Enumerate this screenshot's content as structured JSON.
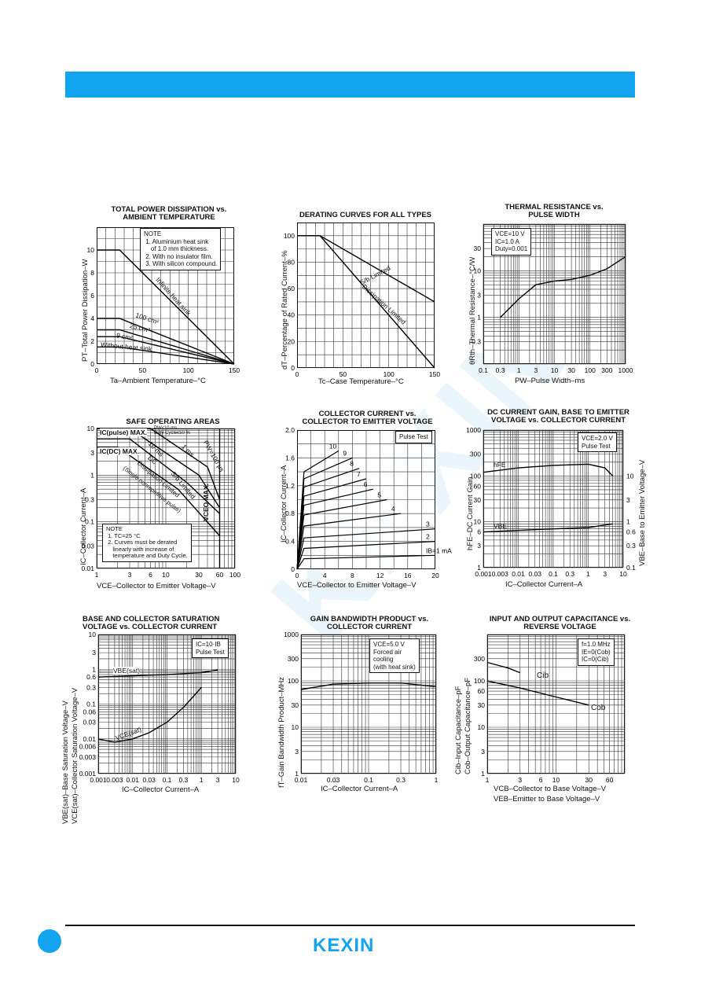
{
  "brand": {
    "logo_text": "KEXIN",
    "header_color": "#12a4ee"
  },
  "panels": {
    "p1": {
      "title": "TOTAL POWER DISSIPATION vs.\nAMBIENT TEMPERATURE",
      "xlabel": "Ta–Ambient Temperature–°C",
      "ylabel": "PT–Total Power Dissipation–W",
      "xticks": [
        "0",
        "50",
        "100",
        "150"
      ],
      "yticks": [
        "0",
        "2",
        "4",
        "6",
        "8",
        "10"
      ],
      "note": "NOTE\n 1. Aluminium heat sink\n    of 1.0 mm thickness.\n 2. With no insulator film.\n 3. With silicon compound.",
      "labels": [
        "Infinite heat sink",
        "100 cm²",
        "25 cm²",
        "9 cm²",
        "Without heat sink"
      ]
    },
    "p2": {
      "title": "DERATING CURVES FOR ALL TYPES",
      "xlabel": "Tc–Case Temperature–°C",
      "ylabel": "dT–Percentage of Rated Current–%",
      "xticks": [
        "0",
        "50",
        "100",
        "150"
      ],
      "yticks": [
        "0",
        "20",
        "40",
        "60",
        "80",
        "100"
      ],
      "labels": [
        "S/b Limited",
        "Dissipation Limited"
      ]
    },
    "p3": {
      "title": "THERMAL RESISTANCE vs.\nPULSE WIDTH",
      "xlabel": "PW–Pulse Width–ms",
      "ylabel": "θRth–Thermal Resistance–°C/W",
      "xticks": [
        "0.1",
        "0.3",
        "1",
        "3",
        "10",
        "30",
        "100",
        "300",
        "1000"
      ],
      "yticks": [
        "0.3",
        "1",
        "3",
        "10",
        "30"
      ],
      "note": "VCE=10 V\nIC=1.0 A\nDuty=0.001"
    },
    "p4": {
      "title": "SAFE OPERATING AREAS",
      "xlabel": "VCE–Collector to Emitter Voltage–V",
      "ylabel": "IC–Collector Current–A",
      "xticks": [
        "1",
        "3",
        "6",
        "10",
        "30",
        "60",
        "100"
      ],
      "yticks": [
        "0.01",
        "0.03",
        "0.1",
        "0.3",
        "1",
        "3",
        "10"
      ],
      "note": "NOTE\n 1. TC=25 °C\n 2. Curves must be derated\n    linearly with increase of\n    temperature and Duty Cycle.",
      "labels": [
        "IC(pulse) MAX.",
        "IC(DC) MAX.",
        "PW≤10 ms",
        "Duty Cycle≤50 %",
        "1 ms",
        "10 ms",
        "PW=100 μs",
        "DC",
        "Dissipation Limited",
        "S/b Limited",
        "(Single nonrepetitive pulse)",
        "VCEO MAX."
      ]
    },
    "p5": {
      "title": "COLLECTOR CURRENT vs.\nCOLLECTOR TO EMITTER VOLTAGE",
      "xlabel": "VCE–Collector to Emitter Voltage–V",
      "ylabel": "IC–Collector Current–A",
      "xticks": [
        "0",
        "4",
        "8",
        "12",
        "16",
        "20"
      ],
      "yticks": [
        "0",
        "0.4",
        "0.8",
        "1.2",
        "1.6",
        "2.0"
      ],
      "note": "Pulse Test",
      "labels": [
        "10",
        "9",
        "8",
        "7",
        "6",
        "5",
        "4",
        "3",
        "2",
        "IB=1 mA"
      ]
    },
    "p6": {
      "title": "DC CURRENT GAIN, BASE TO EMITTER\nVOLTAGE vs. COLLECTOR CURRENT",
      "xlabel": "IC–Collector Current–A",
      "ylabel": "hFE–DC Current Gain",
      "ylabel2": "VBE–Base to Emitter Voltage–V",
      "xticks": [
        "0.001",
        "0.003",
        "0.01",
        "0.03",
        "0.1",
        "0.3",
        "1",
        "3",
        "10"
      ],
      "yticks": [
        "1",
        "3",
        "6",
        "10",
        "30",
        "60",
        "100",
        "300",
        "1000"
      ],
      "yticks2": [
        "0.1",
        "0.3",
        "0.6",
        "1",
        "3",
        "10"
      ],
      "note": "VCE=2.0 V\nPulse Test",
      "labels": [
        "hFE",
        "VBE"
      ]
    },
    "p7": {
      "title": "BASE AND COLLECTOR SATURATION\nVOLTAGE vs. COLLECTOR CURRENT",
      "xlabel": "IC–Collector Current–A",
      "ylabel": "VBE(sat)–Base Saturation Voltage–V",
      "ylabel2": "VCE(sat)–Collector Saturation Voltage–V",
      "xticks": [
        "0.001",
        "0.003",
        "0.01",
        "0.03",
        "0.1",
        "0.3",
        "1",
        "3",
        "10"
      ],
      "yticks": [
        "0.001",
        "0.003",
        "0.006",
        "0.01",
        "0.03",
        "0.06",
        "0.1",
        "0.3",
        "0.6",
        "1",
        "3",
        "10"
      ],
      "note": "IC=10·IB\nPulse Test",
      "labels": [
        "VBE(sat)",
        "VCE(sat)"
      ]
    },
    "p8": {
      "title": "GAIN BANDWIDTH PRODUCT vs.\nCOLLECTOR CURRENT",
      "xlabel": "IC–Collector Current–A",
      "ylabel": "fT–Gain Bandwidth Product–MHz",
      "xticks": [
        "0.01",
        "0.03",
        "0.1",
        "0.3",
        "1"
      ],
      "yticks": [
        "1",
        "3",
        "10",
        "30",
        "100",
        "300",
        "1000"
      ],
      "note": "VCE=5.0 V\nForced air\ncooling\n(with heat sink)"
    },
    "p9": {
      "title": "INPUT AND OUTPUT CAPACITANCE vs.\nREVERSE VOLTAGE",
      "xlabel": "VCB–Collector to Base Voltage–V",
      "xlabel2": "VEB–Emitter to Base Voltage–V",
      "ylabel": "Cib–Input Capacitance–pF",
      "ylabel2": "Cob–Output Capacitance–pF",
      "xticks": [
        "1",
        "3",
        "6",
        "10",
        "30",
        "60"
      ],
      "yticks": [
        "1",
        "3",
        "10",
        "30",
        "60",
        "100",
        "300"
      ],
      "note": "f=1.0 MHz\nIE=0(Cob)\nIC=0(Cib)",
      "labels": [
        "Cib",
        "Cob"
      ]
    }
  },
  "chart_data": [
    {
      "type": "line",
      "title": "TOTAL POWER DISSIPATION vs. AMBIENT TEMPERATURE",
      "xlabel": "Ta–Ambient Temperature–°C",
      "ylabel": "PT–Total Power Dissipation–W",
      "xlim": [
        0,
        150
      ],
      "ylim": [
        0,
        12
      ],
      "series": [
        {
          "name": "Infinite heat sink",
          "x": [
            0,
            25,
            150
          ],
          "y": [
            10,
            10,
            0
          ]
        },
        {
          "name": "100 cm²",
          "x": [
            0,
            25,
            150
          ],
          "y": [
            4,
            4,
            0
          ]
        },
        {
          "name": "25 cm²",
          "x": [
            0,
            25,
            150
          ],
          "y": [
            3,
            3,
            0
          ]
        },
        {
          "name": "9 cm²",
          "x": [
            0,
            25,
            150
          ],
          "y": [
            2.4,
            2.4,
            0
          ]
        },
        {
          "name": "Without heat sink",
          "x": [
            0,
            25,
            150
          ],
          "y": [
            1.5,
            1.5,
            0
          ]
        }
      ]
    },
    {
      "type": "line",
      "title": "DERATING CURVES FOR ALL TYPES",
      "xlabel": "Tc–Case Temperature–°C",
      "ylabel": "dT–Percentage of Rated Current–%",
      "xlim": [
        0,
        150
      ],
      "ylim": [
        0,
        110
      ],
      "series": [
        {
          "name": "S/b Limited",
          "x": [
            0,
            25,
            150
          ],
          "y": [
            100,
            100,
            50
          ]
        },
        {
          "name": "Dissipation Limited",
          "x": [
            0,
            25,
            150
          ],
          "y": [
            100,
            100,
            0
          ]
        }
      ]
    },
    {
      "type": "line",
      "title": "THERMAL RESISTANCE vs. PULSE WIDTH",
      "xlabel": "PW–Pulse Width–ms",
      "ylabel": "θRth–Thermal Resistance–°C/W",
      "xlim": [
        0.1,
        1000
      ],
      "ylim": [
        0.1,
        100
      ],
      "xscale": "log",
      "yscale": "log",
      "series": [
        {
          "x": [
            0.3,
            1,
            3,
            10,
            30,
            100,
            300,
            1000
          ],
          "y": [
            1,
            2.5,
            5,
            6,
            6.5,
            8,
            11,
            20
          ]
        }
      ]
    },
    {
      "type": "line",
      "title": "SAFE OPERATING AREAS",
      "xlabel": "VCE–Collector to Emitter Voltage–V",
      "ylabel": "IC–Collector Current–A",
      "xlim": [
        1,
        100
      ],
      "ylim": [
        0.01,
        10
      ],
      "xscale": "log",
      "yscale": "log",
      "series": [
        {
          "name": "PW=100 μs",
          "x": [
            1,
            6,
            40,
            60
          ],
          "y": [
            10,
            10,
            1.5,
            0.3
          ]
        },
        {
          "name": "1 ms",
          "x": [
            1,
            3,
            30,
            60
          ],
          "y": [
            10,
            10,
            1,
            0.2
          ]
        },
        {
          "name": "10 ms",
          "x": [
            1,
            3,
            20,
            60
          ],
          "y": [
            6,
            6,
            0.7,
            0.15
          ]
        },
        {
          "name": "DC",
          "x": [
            1,
            2,
            15,
            60
          ],
          "y": [
            4,
            4,
            0.5,
            0.05
          ]
        }
      ]
    },
    {
      "type": "line",
      "title": "COLLECTOR CURRENT vs. COLLECTOR TO EMITTER VOLTAGE",
      "xlabel": "VCE–Collector to Emitter Voltage–V",
      "ylabel": "IC–Collector Current–A",
      "xlim": [
        0,
        20
      ],
      "ylim": [
        0,
        2.0
      ],
      "series": [
        {
          "name": "10",
          "x": [
            0,
            1,
            6
          ],
          "y": [
            0,
            1.4,
            1.7
          ]
        },
        {
          "name": "9",
          "x": [
            0,
            1,
            8
          ],
          "y": [
            0,
            1.3,
            1.6
          ]
        },
        {
          "name": "8",
          "x": [
            0,
            1,
            9
          ],
          "y": [
            0,
            1.18,
            1.45
          ]
        },
        {
          "name": "7",
          "x": [
            0,
            1,
            10
          ],
          "y": [
            0,
            1.05,
            1.3
          ]
        },
        {
          "name": "6",
          "x": [
            0,
            1,
            11
          ],
          "y": [
            0,
            0.92,
            1.15
          ]
        },
        {
          "name": "5",
          "x": [
            0,
            1,
            13
          ],
          "y": [
            0,
            0.78,
            1.0
          ]
        },
        {
          "name": "4",
          "x": [
            0,
            1,
            15
          ],
          "y": [
            0,
            0.62,
            0.8
          ]
        },
        {
          "name": "3",
          "x": [
            0,
            1,
            20
          ],
          "y": [
            0,
            0.45,
            0.58
          ]
        },
        {
          "name": "2",
          "x": [
            0,
            1,
            20
          ],
          "y": [
            0,
            0.3,
            0.4
          ]
        },
        {
          "name": "IB=1 mA",
          "x": [
            0,
            1,
            20
          ],
          "y": [
            0,
            0.15,
            0.2
          ]
        }
      ]
    },
    {
      "type": "line",
      "title": "DC CURRENT GAIN, BASE TO EMITTER VOLTAGE vs. COLLECTOR CURRENT",
      "xlabel": "IC–Collector Current–A",
      "ylabel": "hFE–DC Current Gain",
      "xlim": [
        0.001,
        10
      ],
      "ylim": [
        1,
        1000
      ],
      "xscale": "log",
      "yscale": "log",
      "series": [
        {
          "name": "hFE",
          "x": [
            0.001,
            0.01,
            0.1,
            1,
            3,
            5
          ],
          "y": [
            120,
            150,
            170,
            180,
            150,
            100
          ]
        },
        {
          "name": "VBE",
          "x": [
            0.001,
            0.01,
            0.1,
            1,
            5
          ],
          "y": [
            6,
            6.5,
            7,
            7.5,
            9
          ]
        }
      ]
    },
    {
      "type": "line",
      "title": "BASE AND COLLECTOR SATURATION VOLTAGE vs. COLLECTOR CURRENT",
      "xlabel": "IC–Collector Current–A",
      "ylabel": "VBE(sat)–Base Saturation Voltage–V",
      "xlim": [
        0.001,
        10
      ],
      "ylim": [
        0.001,
        10
      ],
      "xscale": "log",
      "yscale": "log",
      "series": [
        {
          "name": "VBE(sat)",
          "x": [
            0.001,
            0.01,
            0.1,
            1,
            3
          ],
          "y": [
            0.6,
            0.65,
            0.7,
            0.8,
            0.95
          ]
        },
        {
          "name": "VCE(sat)",
          "x": [
            0.001,
            0.003,
            0.01,
            0.03,
            0.1,
            0.3,
            1
          ],
          "y": [
            0.01,
            0.008,
            0.01,
            0.015,
            0.03,
            0.08,
            0.3
          ]
        }
      ]
    },
    {
      "type": "line",
      "title": "GAIN BANDWIDTH PRODUCT vs. COLLECTOR CURRENT",
      "xlabel": "IC–Collector Current–A",
      "ylabel": "fT–Gain Bandwidth Product–MHz",
      "xlim": [
        0.01,
        1
      ],
      "ylim": [
        1,
        1000
      ],
      "xscale": "log",
      "yscale": "log",
      "series": [
        {
          "x": [
            0.01,
            0.03,
            0.1,
            0.3,
            1
          ],
          "y": [
            65,
            85,
            90,
            90,
            75
          ]
        }
      ]
    },
    {
      "type": "line",
      "title": "INPUT AND OUTPUT CAPACITANCE vs. REVERSE VOLTAGE",
      "xlabel": "VCB–Collector to Base Voltage–V",
      "ylabel": "Cib–Input Capacitance–pF",
      "xlim": [
        1,
        100
      ],
      "ylim": [
        1,
        1000
      ],
      "xscale": "log",
      "yscale": "log",
      "series": [
        {
          "name": "Cib",
          "x": [
            1,
            2,
            3
          ],
          "y": [
            250,
            190,
            150
          ]
        },
        {
          "name": "Cob",
          "x": [
            1,
            3,
            10,
            30
          ],
          "y": [
            100,
            70,
            45,
            30
          ]
        }
      ]
    }
  ]
}
